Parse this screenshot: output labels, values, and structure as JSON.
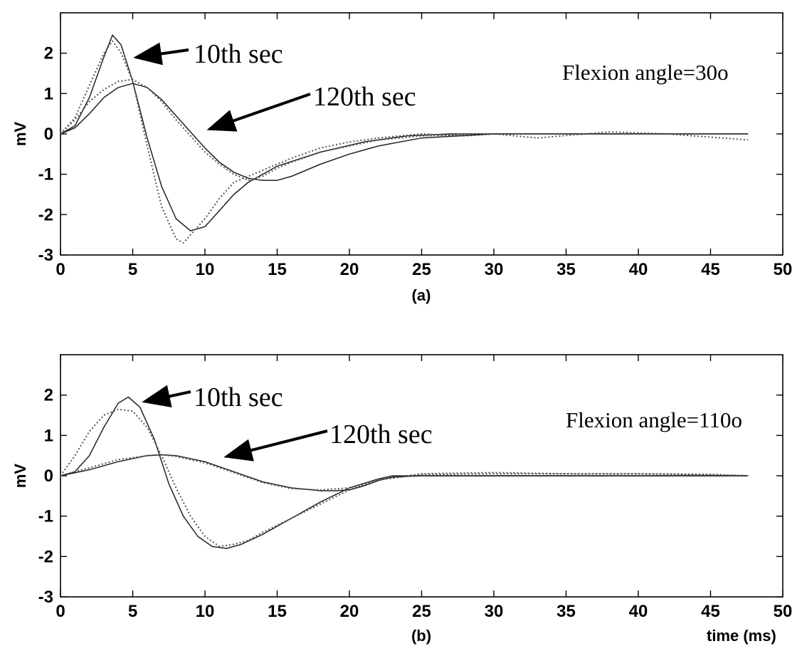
{
  "chart_data": [
    {
      "type": "line",
      "xlim": [
        0,
        50
      ],
      "ylim": [
        -3,
        3
      ],
      "xticks": [
        "0",
        "5",
        "10",
        "15",
        "20",
        "25",
        "30",
        "35",
        "40",
        "45",
        "50"
      ],
      "yticks": [
        "-3",
        "-2",
        "-1",
        "0",
        "1",
        "2"
      ],
      "ylabel": "mV",
      "caption": "(a)",
      "xlabel": "",
      "annotations": {
        "a10": "10th sec",
        "a120": "120th sec",
        "flexion": "Flexion angle=30o"
      },
      "series": [
        {
          "style": "solid",
          "x": [
            0,
            1,
            2,
            3,
            3.6,
            4.2,
            5,
            6,
            7,
            8,
            9,
            10,
            11,
            12,
            13,
            15,
            18,
            21,
            24,
            27,
            30,
            35,
            40,
            45,
            47.6
          ],
          "y": [
            0,
            0.2,
            0.9,
            1.9,
            2.45,
            2.2,
            1.3,
            -0.1,
            -1.3,
            -2.1,
            -2.4,
            -2.3,
            -1.9,
            -1.5,
            -1.2,
            -0.8,
            -0.45,
            -0.2,
            -0.05,
            0,
            0,
            0,
            0,
            0,
            0
          ]
        },
        {
          "style": "dotted",
          "x": [
            0,
            1,
            2,
            3,
            3.6,
            4.2,
            5,
            6,
            7,
            8,
            8.5,
            9,
            10,
            11,
            12,
            14,
            16,
            18,
            20,
            22,
            25,
            28,
            30,
            33,
            38,
            42,
            47.6
          ],
          "y": [
            0,
            0.4,
            1.2,
            2.0,
            2.3,
            2.0,
            1.3,
            -0.3,
            -1.8,
            -2.6,
            -2.7,
            -2.5,
            -2.1,
            -1.6,
            -1.2,
            -0.9,
            -0.6,
            -0.35,
            -0.2,
            -0.1,
            0,
            -0.05,
            0,
            -0.1,
            0.05,
            0,
            -0.15
          ]
        },
        {
          "style": "solid",
          "x": [
            0,
            1,
            2,
            3,
            4,
            5,
            6,
            7,
            8,
            9,
            10,
            11,
            12,
            13,
            14,
            15,
            16,
            18,
            20,
            22,
            25,
            30,
            35,
            40,
            45,
            47.6
          ],
          "y": [
            0,
            0.15,
            0.5,
            0.9,
            1.15,
            1.25,
            1.15,
            0.85,
            0.45,
            0.05,
            -0.35,
            -0.7,
            -0.95,
            -1.1,
            -1.15,
            -1.15,
            -1.05,
            -0.75,
            -0.5,
            -0.3,
            -0.1,
            0,
            0,
            0,
            0,
            0
          ]
        },
        {
          "style": "dotted",
          "x": [
            0,
            1,
            2,
            3,
            4,
            5,
            6,
            7,
            8,
            9,
            10,
            11,
            12,
            13,
            14,
            15,
            16,
            18,
            20,
            22,
            25,
            30,
            35,
            40,
            45,
            47.6
          ],
          "y": [
            0,
            0.35,
            0.8,
            1.1,
            1.3,
            1.35,
            1.15,
            0.8,
            0.35,
            -0.05,
            -0.45,
            -0.75,
            -1.0,
            -1.15,
            -1.05,
            -0.85,
            -0.7,
            -0.45,
            -0.3,
            -0.15,
            -0.05,
            0,
            0,
            0,
            0,
            0
          ]
        }
      ]
    },
    {
      "type": "line",
      "xlim": [
        0,
        50
      ],
      "ylim": [
        -3,
        3
      ],
      "xticks": [
        "0",
        "5",
        "10",
        "15",
        "20",
        "25",
        "30",
        "35",
        "40",
        "45",
        "50"
      ],
      "yticks": [
        "-3",
        "-2",
        "-1",
        "0",
        "1",
        "2"
      ],
      "ylabel": "mV",
      "caption": "(b)",
      "xlabel": "time  (ms)",
      "annotations": {
        "a10": "10th sec",
        "a120": "120th sec",
        "flexion": "Flexion angle=110o"
      },
      "series": [
        {
          "style": "solid",
          "x": [
            0,
            1,
            2,
            3,
            4,
            4.7,
            5.5,
            6.5,
            7.5,
            8.5,
            9.5,
            10.5,
            11.5,
            12.5,
            14,
            16,
            18,
            20,
            22,
            23,
            25,
            30,
            35,
            40,
            45,
            47.6
          ],
          "y": [
            0,
            0.1,
            0.5,
            1.2,
            1.8,
            1.95,
            1.7,
            0.9,
            -0.2,
            -1.0,
            -1.5,
            -1.75,
            -1.8,
            -1.7,
            -1.45,
            -1.05,
            -0.65,
            -0.3,
            -0.08,
            0,
            0,
            0,
            0,
            0,
            0,
            0
          ]
        },
        {
          "style": "dotted",
          "x": [
            0,
            1,
            2,
            3,
            4,
            5,
            6,
            7,
            8,
            9,
            10,
            11,
            12,
            13,
            14,
            16,
            18,
            20,
            22,
            25,
            30,
            35,
            40,
            45,
            47.6
          ],
          "y": [
            0,
            0.5,
            1.1,
            1.5,
            1.65,
            1.6,
            1.2,
            0.5,
            -0.3,
            -1.0,
            -1.5,
            -1.75,
            -1.7,
            -1.6,
            -1.4,
            -1.05,
            -0.7,
            -0.35,
            -0.1,
            0.05,
            0.08,
            0.05,
            0.05,
            0.03,
            0
          ]
        },
        {
          "style": "solid",
          "x": [
            0,
            2,
            4,
            6,
            7,
            8,
            10,
            12,
            14,
            16,
            18,
            19,
            20,
            21,
            22,
            23,
            25,
            30,
            35,
            40,
            45,
            47.6
          ],
          "y": [
            0,
            0.15,
            0.35,
            0.5,
            0.52,
            0.5,
            0.35,
            0.1,
            -0.15,
            -0.3,
            -0.37,
            -0.37,
            -0.35,
            -0.25,
            -0.12,
            -0.03,
            0,
            0,
            0,
            0,
            0,
            0
          ]
        },
        {
          "style": "dotted",
          "x": [
            0,
            2,
            4,
            6,
            7,
            8,
            10,
            12,
            14,
            16,
            18,
            20,
            22,
            25,
            30,
            35,
            40,
            45,
            47.6
          ],
          "y": [
            0,
            0.2,
            0.4,
            0.5,
            0.52,
            0.48,
            0.32,
            0.08,
            -0.17,
            -0.32,
            -0.35,
            -0.3,
            -0.1,
            0.03,
            0.05,
            0.05,
            0.05,
            0.03,
            0
          ]
        }
      ]
    }
  ]
}
